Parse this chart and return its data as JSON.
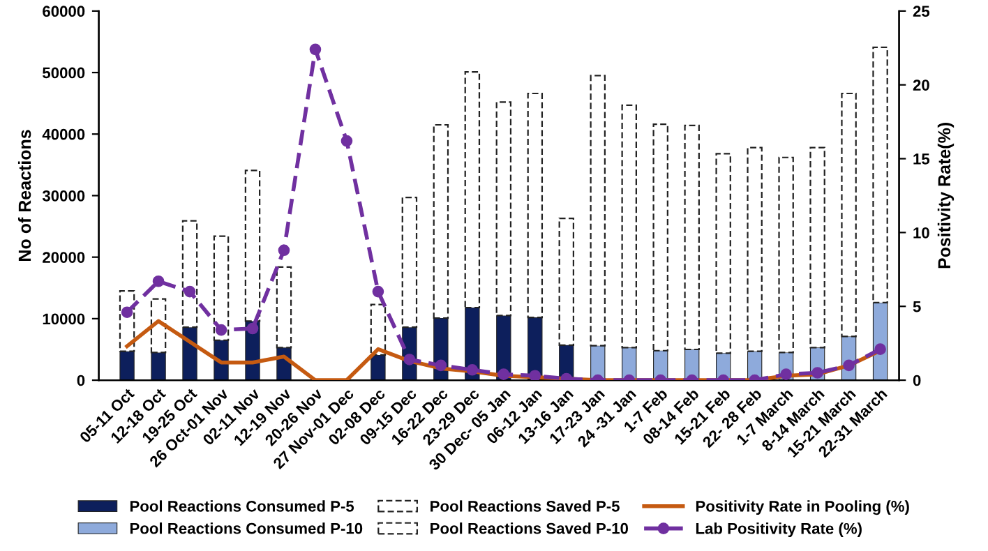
{
  "chart_data": {
    "type": "bar",
    "stacked": true,
    "ylabel": "No of Reactions",
    "y2label": "Positivity Rate(%)",
    "categories": [
      "05-11 Oct",
      "12-18 Oct",
      "19-25 Oct",
      "26 Oct-01 Nov",
      "02-11 Nov",
      "12-19 Nov",
      "20-26 Nov",
      "27 Nov-01 Dec",
      "02-08 Dec",
      "09-15 Dec",
      "16-22 Dec",
      "23-29 Dec",
      "30 Dec- 05 Jan",
      "06-12 Jan",
      "13-16 Jan",
      "17-23 Jan",
      "24 -31 Jan",
      "1-7 Feb",
      "08-14 Feb",
      "15-21 Feb",
      "22- 28 Feb",
      "1-7 March",
      "8-14 March",
      "15-21 March",
      "22-31 March"
    ],
    "series": [
      {
        "name": "Pool Reactions Consumed P-5",
        "color": "#0d1f5c",
        "values": [
          4700,
          4500,
          8600,
          6500,
          9600,
          5300,
          0,
          0,
          4100,
          8600,
          10100,
          11800,
          10500,
          10200,
          5700,
          null,
          null,
          null,
          null,
          null,
          null,
          null,
          null,
          null,
          null
        ]
      },
      {
        "name": "Pool Reactions Consumed P-10",
        "color": "#8eaadb",
        "values": [
          null,
          null,
          null,
          null,
          null,
          null,
          null,
          null,
          null,
          null,
          null,
          null,
          null,
          null,
          null,
          5600,
          5300,
          4800,
          5000,
          4400,
          4700,
          4500,
          5300,
          7100,
          12600
        ]
      },
      {
        "name": "Pool Reactions Saved P-5",
        "color": "#ffffff",
        "line_style": "dashed",
        "values": [
          9800,
          8700,
          17300,
          16900,
          24500,
          13100,
          0,
          0,
          8200,
          21100,
          31400,
          38300,
          34700,
          36400,
          20600,
          null,
          null,
          null,
          null,
          null,
          null,
          null,
          null,
          null,
          null
        ]
      },
      {
        "name": "Pool Reactions Saved P-10",
        "color": "#ffffff",
        "line_style": "dashed",
        "values": [
          null,
          null,
          null,
          null,
          null,
          null,
          null,
          null,
          null,
          null,
          null,
          null,
          null,
          null,
          null,
          43900,
          39400,
          36800,
          36400,
          32400,
          33100,
          31700,
          32500,
          39500,
          41500
        ]
      },
      {
        "name": "Positivity Rate in Pooling (%)",
        "type": "line",
        "axis": "y2",
        "color": "#c55a11",
        "line_style": "solid",
        "marker": "none",
        "values": [
          2.3,
          4.0,
          2.6,
          1.2,
          1.2,
          1.6,
          0,
          0,
          2.1,
          1.3,
          0.8,
          0.6,
          0.3,
          0.2,
          0.1,
          0.0,
          0.0,
          0.0,
          0.0,
          0.0,
          0.0,
          0.3,
          0.4,
          1.0,
          2.0
        ]
      },
      {
        "name": "Lab Positivity Rate (%)",
        "type": "line",
        "axis": "y2",
        "color": "#7030a0",
        "line_style": "dashed",
        "marker": "circle",
        "values": [
          4.6,
          6.7,
          6.0,
          3.4,
          3.5,
          8.8,
          22.4,
          16.2,
          6.0,
          1.4,
          1.0,
          0.7,
          0.4,
          0.3,
          0.1,
          0.0,
          0.0,
          0.0,
          0.0,
          0.0,
          0.0,
          0.4,
          0.5,
          1.0,
          2.1
        ]
      }
    ],
    "ylim": [
      0,
      60000
    ],
    "yticks": [
      0,
      10000,
      20000,
      30000,
      40000,
      50000,
      60000
    ],
    "y2lim": [
      0,
      25
    ],
    "y2ticks": [
      0,
      5,
      10,
      15,
      20,
      25
    ],
    "grid": false,
    "legend": "bottom"
  }
}
